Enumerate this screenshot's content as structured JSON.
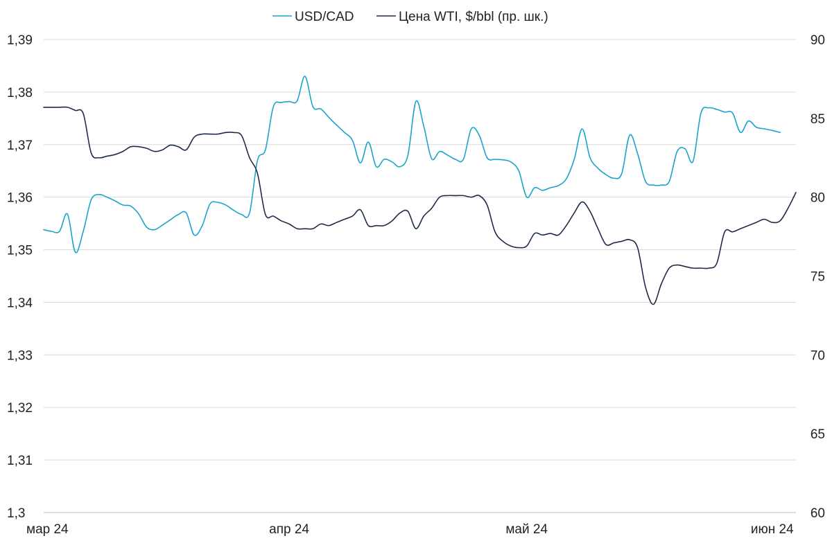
{
  "chart_data": {
    "type": "line",
    "title": "",
    "legend": {
      "placement": "top-center",
      "entries": [
        "USD/CAD",
        "Цена WTI,  $/bbl (пр. шк.)"
      ]
    },
    "grid": true,
    "x_axis": {
      "range": [
        "2024-03-01",
        "2024-06-04"
      ],
      "tick_labels": [
        "мар 24",
        "апр 24",
        "май 24",
        "июн 24"
      ],
      "tick_dates": [
        "2024-03-01",
        "2024-04-01",
        "2024-05-01",
        "2024-06-01"
      ]
    },
    "y_left": {
      "range": [
        1.3,
        1.39
      ],
      "ticks": [
        1.3,
        1.31,
        1.32,
        1.33,
        1.34,
        1.35,
        1.36,
        1.37,
        1.38,
        1.39
      ],
      "tick_labels": [
        "1,3",
        "1,31",
        "1,32",
        "1,33",
        "1,34",
        "1,35",
        "1,36",
        "1,37",
        "1,38",
        "1,39"
      ]
    },
    "y_right": {
      "range": [
        60,
        90
      ],
      "ticks": [
        60,
        65,
        70,
        75,
        80,
        85,
        90
      ],
      "tick_labels": [
        "60",
        "65",
        "70",
        "75",
        "80",
        "85",
        "90"
      ]
    },
    "series": [
      {
        "name": "USD/CAD",
        "axis": "left",
        "color": "#1aa3cc",
        "points": [
          [
            "2024-03-01",
            1.3538
          ],
          [
            "2024-03-02",
            1.3535
          ],
          [
            "2024-03-03",
            1.3535
          ],
          [
            "2024-03-04",
            1.3568
          ],
          [
            "2024-03-05",
            1.3495
          ],
          [
            "2024-03-06",
            1.3535
          ],
          [
            "2024-03-07",
            1.3595
          ],
          [
            "2024-03-08",
            1.3605
          ],
          [
            "2024-03-09",
            1.36
          ],
          [
            "2024-03-10",
            1.3593
          ],
          [
            "2024-03-11",
            1.3585
          ],
          [
            "2024-03-12",
            1.3583
          ],
          [
            "2024-03-13",
            1.3568
          ],
          [
            "2024-03-14",
            1.3543
          ],
          [
            "2024-03-15",
            1.3538
          ],
          [
            "2024-03-16",
            1.3547
          ],
          [
            "2024-03-17",
            1.3557
          ],
          [
            "2024-03-18",
            1.3567
          ],
          [
            "2024-03-19",
            1.357
          ],
          [
            "2024-03-20",
            1.3528
          ],
          [
            "2024-03-21",
            1.3545
          ],
          [
            "2024-03-22",
            1.3587
          ],
          [
            "2024-03-23",
            1.359
          ],
          [
            "2024-03-24",
            1.3585
          ],
          [
            "2024-03-25",
            1.3575
          ],
          [
            "2024-03-26",
            1.3567
          ],
          [
            "2024-03-27",
            1.357
          ],
          [
            "2024-03-28",
            1.367
          ],
          [
            "2024-03-29",
            1.369
          ],
          [
            "2024-03-30",
            1.3772
          ],
          [
            "2024-03-31",
            1.378
          ],
          [
            "2024-04-01",
            1.3782
          ],
          [
            "2024-04-02",
            1.3783
          ],
          [
            "2024-04-03",
            1.383
          ],
          [
            "2024-04-04",
            1.3772
          ],
          [
            "2024-04-05",
            1.3768
          ],
          [
            "2024-04-06",
            1.3752
          ],
          [
            "2024-04-07",
            1.3737
          ],
          [
            "2024-04-08",
            1.3723
          ],
          [
            "2024-04-09",
            1.3708
          ],
          [
            "2024-04-10",
            1.3665
          ],
          [
            "2024-04-11",
            1.3705
          ],
          [
            "2024-04-12",
            1.3658
          ],
          [
            "2024-04-13",
            1.3672
          ],
          [
            "2024-04-14",
            1.3667
          ],
          [
            "2024-04-15",
            1.3658
          ],
          [
            "2024-04-16",
            1.368
          ],
          [
            "2024-04-17",
            1.3782
          ],
          [
            "2024-04-18",
            1.3735
          ],
          [
            "2024-04-19",
            1.3673
          ],
          [
            "2024-04-20",
            1.3687
          ],
          [
            "2024-04-21",
            1.368
          ],
          [
            "2024-04-22",
            1.3672
          ],
          [
            "2024-04-23",
            1.3672
          ],
          [
            "2024-04-24",
            1.373
          ],
          [
            "2024-04-25",
            1.3718
          ],
          [
            "2024-04-26",
            1.3675
          ],
          [
            "2024-04-27",
            1.3672
          ],
          [
            "2024-04-28",
            1.3671
          ],
          [
            "2024-04-29",
            1.3667
          ],
          [
            "2024-04-30",
            1.365
          ],
          [
            "2024-05-01",
            1.36
          ],
          [
            "2024-05-02",
            1.3618
          ],
          [
            "2024-05-03",
            1.3613
          ],
          [
            "2024-05-04",
            1.3618
          ],
          [
            "2024-05-05",
            1.3622
          ],
          [
            "2024-05-06",
            1.3635
          ],
          [
            "2024-05-07",
            1.3672
          ],
          [
            "2024-05-08",
            1.373
          ],
          [
            "2024-05-09",
            1.3675
          ],
          [
            "2024-05-10",
            1.3655
          ],
          [
            "2024-05-11",
            1.3643
          ],
          [
            "2024-05-12",
            1.3636
          ],
          [
            "2024-05-13",
            1.3645
          ],
          [
            "2024-05-14",
            1.3718
          ],
          [
            "2024-05-15",
            1.3683
          ],
          [
            "2024-05-16",
            1.363
          ],
          [
            "2024-05-17",
            1.3623
          ],
          [
            "2024-05-18",
            1.3623
          ],
          [
            "2024-05-19",
            1.363
          ],
          [
            "2024-05-20",
            1.3687
          ],
          [
            "2024-05-21",
            1.3692
          ],
          [
            "2024-05-22",
            1.3668
          ],
          [
            "2024-05-23",
            1.376
          ],
          [
            "2024-05-24",
            1.377
          ],
          [
            "2024-05-25",
            1.3767
          ],
          [
            "2024-05-26",
            1.3762
          ],
          [
            "2024-05-27",
            1.376
          ],
          [
            "2024-05-28",
            1.3723
          ],
          [
            "2024-05-29",
            1.3745
          ],
          [
            "2024-05-30",
            1.3733
          ],
          [
            "2024-05-31",
            1.373
          ],
          [
            "2024-06-01",
            1.3727
          ],
          [
            "2024-06-02",
            1.3723
          ]
        ]
      },
      {
        "name": "Цена WTI,  $/bbl (пр. шк.)",
        "axis": "right",
        "color": "#1e2a4a",
        "points": [
          [
            "2024-03-01",
            85.7
          ],
          [
            "2024-03-02",
            85.7
          ],
          [
            "2024-03-03",
            85.7
          ],
          [
            "2024-03-04",
            85.7
          ],
          [
            "2024-03-05",
            85.5
          ],
          [
            "2024-03-06",
            85.3
          ],
          [
            "2024-03-07",
            82.8
          ],
          [
            "2024-03-08",
            82.5
          ],
          [
            "2024-03-09",
            82.6
          ],
          [
            "2024-03-10",
            82.7
          ],
          [
            "2024-03-11",
            82.9
          ],
          [
            "2024-03-12",
            83.2
          ],
          [
            "2024-03-13",
            83.2
          ],
          [
            "2024-03-14",
            83.1
          ],
          [
            "2024-03-15",
            82.9
          ],
          [
            "2024-03-16",
            83.0
          ],
          [
            "2024-03-17",
            83.3
          ],
          [
            "2024-03-18",
            83.2
          ],
          [
            "2024-03-19",
            83.0
          ],
          [
            "2024-03-20",
            83.8
          ],
          [
            "2024-03-21",
            84.0
          ],
          [
            "2024-03-22",
            84.0
          ],
          [
            "2024-03-23",
            84.0
          ],
          [
            "2024-03-24",
            84.1
          ],
          [
            "2024-03-25",
            84.1
          ],
          [
            "2024-03-26",
            83.9
          ],
          [
            "2024-03-27",
            82.5
          ],
          [
            "2024-03-28",
            81.5
          ],
          [
            "2024-03-29",
            78.9
          ],
          [
            "2024-03-30",
            78.8
          ],
          [
            "2024-03-31",
            78.5
          ],
          [
            "2024-04-01",
            78.3
          ],
          [
            "2024-04-02",
            78.0
          ],
          [
            "2024-04-03",
            78.0
          ],
          [
            "2024-04-04",
            78.0
          ],
          [
            "2024-04-05",
            78.3
          ],
          [
            "2024-04-06",
            78.2
          ],
          [
            "2024-04-07",
            78.4
          ],
          [
            "2024-04-08",
            78.6
          ],
          [
            "2024-04-09",
            78.8
          ],
          [
            "2024-04-10",
            79.2
          ],
          [
            "2024-04-11",
            78.2
          ],
          [
            "2024-04-12",
            78.2
          ],
          [
            "2024-04-13",
            78.2
          ],
          [
            "2024-04-14",
            78.5
          ],
          [
            "2024-04-15",
            79.0
          ],
          [
            "2024-04-16",
            79.1
          ],
          [
            "2024-04-17",
            78.0
          ],
          [
            "2024-04-18",
            78.8
          ],
          [
            "2024-04-19",
            79.3
          ],
          [
            "2024-04-20",
            80.0
          ],
          [
            "2024-04-21",
            80.1
          ],
          [
            "2024-04-22",
            80.1
          ],
          [
            "2024-04-23",
            80.1
          ],
          [
            "2024-04-24",
            80.0
          ],
          [
            "2024-04-25",
            80.1
          ],
          [
            "2024-04-26",
            79.5
          ],
          [
            "2024-04-27",
            77.8
          ],
          [
            "2024-04-28",
            77.2
          ],
          [
            "2024-04-29",
            76.9
          ],
          [
            "2024-04-30",
            76.8
          ],
          [
            "2024-05-01",
            76.9
          ],
          [
            "2024-05-02",
            77.7
          ],
          [
            "2024-05-03",
            77.6
          ],
          [
            "2024-05-04",
            77.7
          ],
          [
            "2024-05-05",
            77.6
          ],
          [
            "2024-05-06",
            78.2
          ],
          [
            "2024-05-07",
            79.0
          ],
          [
            "2024-05-08",
            79.7
          ],
          [
            "2024-05-09",
            79.1
          ],
          [
            "2024-05-10",
            78.0
          ],
          [
            "2024-05-11",
            77.0
          ],
          [
            "2024-05-12",
            77.1
          ],
          [
            "2024-05-13",
            77.2
          ],
          [
            "2024-05-14",
            77.3
          ],
          [
            "2024-05-15",
            76.8
          ],
          [
            "2024-05-16",
            74.3
          ],
          [
            "2024-05-17",
            73.2
          ],
          [
            "2024-05-18",
            74.5
          ],
          [
            "2024-05-19",
            75.5
          ],
          [
            "2024-05-20",
            75.7
          ],
          [
            "2024-05-21",
            75.6
          ],
          [
            "2024-05-22",
            75.5
          ],
          [
            "2024-05-23",
            75.5
          ],
          [
            "2024-05-24",
            75.5
          ],
          [
            "2024-05-25",
            75.8
          ],
          [
            "2024-05-26",
            77.8
          ],
          [
            "2024-05-27",
            77.8
          ],
          [
            "2024-05-28",
            78.0
          ],
          [
            "2024-05-29",
            78.2
          ],
          [
            "2024-05-30",
            78.4
          ],
          [
            "2024-05-31",
            78.6
          ],
          [
            "2024-06-01",
            78.4
          ],
          [
            "2024-06-02",
            78.5
          ],
          [
            "2024-06-03",
            79.3
          ],
          [
            "2024-06-04",
            80.3
          ]
        ]
      }
    ]
  }
}
